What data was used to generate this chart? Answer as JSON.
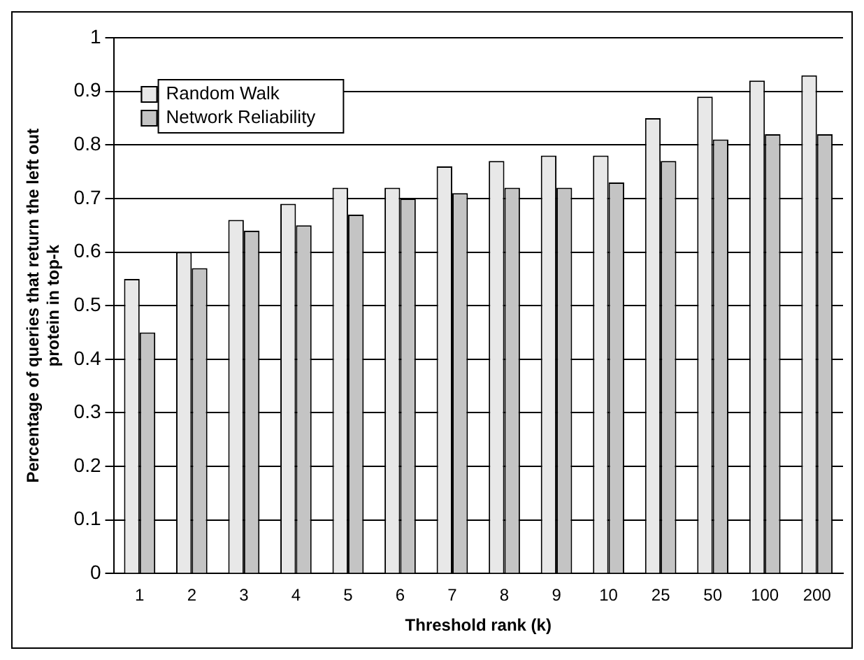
{
  "chart_data": {
    "type": "bar",
    "xlabel": "Threshold rank (k)",
    "ylabel": "Percentage of queries that return the left out protein in top-k",
    "categories": [
      "1",
      "2",
      "3",
      "4",
      "5",
      "6",
      "7",
      "8",
      "9",
      "10",
      "25",
      "50",
      "100",
      "200"
    ],
    "series": [
      {
        "name": "Random Walk",
        "color": "#e8e8e8",
        "values": [
          0.55,
          0.6,
          0.66,
          0.69,
          0.72,
          0.72,
          0.76,
          0.77,
          0.78,
          0.78,
          0.85,
          0.89,
          0.92,
          0.93
        ]
      },
      {
        "name": "Network Reliability",
        "color": "#c4c4c4",
        "values": [
          0.45,
          0.57,
          0.64,
          0.65,
          0.67,
          0.7,
          0.71,
          0.72,
          0.72,
          0.73,
          0.77,
          0.81,
          0.82,
          0.82
        ]
      }
    ],
    "ylim": [
      0,
      1
    ],
    "yticks": [
      0,
      0.1,
      0.2,
      0.3,
      0.4,
      0.5,
      0.6,
      0.7,
      0.8,
      0.9,
      1
    ],
    "grid": "y",
    "legend": "top left"
  }
}
